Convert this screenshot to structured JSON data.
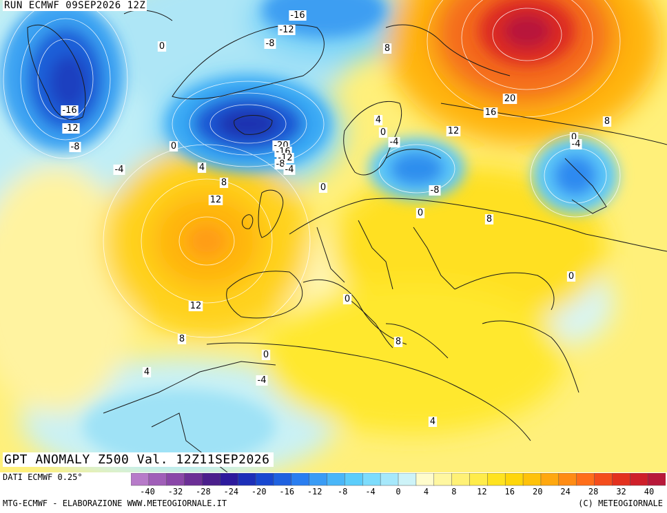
{
  "run_label": "RUN ECMWF 09SEP2026 12Z",
  "title": "GPT ANOMALY Z500 Val. 12Z11SEP2026",
  "data_source": "DATI ECMWF 0.25°",
  "credit_left": "MTG-ECMWF - ELABORAZIONE WWW.METEOGIORNALE.IT",
  "credit_right": "(C) METEOGIORNALE",
  "legend": {
    "ticks": [
      "-40",
      "-32",
      "-28",
      "-24",
      "-20",
      "-16",
      "-12",
      "-8",
      "-4",
      "0",
      "4",
      "8",
      "12",
      "16",
      "20",
      "24",
      "28",
      "32",
      "40"
    ],
    "colors": [
      "#b77bc9",
      "#a05fb8",
      "#8a47a8",
      "#6c2f96",
      "#4b1f8c",
      "#2c1a9c",
      "#1c2fb8",
      "#1848d0",
      "#1f62e0",
      "#2a7ef0",
      "#3a9cf5",
      "#4ab6f8",
      "#5ccdfb",
      "#7ddcfc",
      "#a6e8fb",
      "#cdf3f8",
      "#fffccc",
      "#fff7a0",
      "#fff176",
      "#ffec4a",
      "#ffe31f",
      "#ffd60a",
      "#ffc20a",
      "#ffa80f",
      "#ff8c14",
      "#ff6e1a",
      "#f44d1c",
      "#e3311e",
      "#cf1f2a",
      "#b8183a"
    ]
  },
  "contour_labels": [
    {
      "text": "-16"
    },
    {
      "text": "-12"
    },
    {
      "text": "-8"
    },
    {
      "text": "0"
    },
    {
      "text": "-16"
    },
    {
      "text": "-12"
    },
    {
      "text": "-8"
    },
    {
      "text": "0"
    },
    {
      "text": "-4"
    },
    {
      "text": "4"
    },
    {
      "text": "8"
    },
    {
      "text": "12"
    },
    {
      "text": "-20"
    },
    {
      "text": "-16"
    },
    {
      "text": "-12"
    },
    {
      "text": "-8"
    },
    {
      "text": "-4"
    },
    {
      "text": "0"
    },
    {
      "text": "8"
    },
    {
      "text": "20"
    },
    {
      "text": "16"
    },
    {
      "text": "12"
    },
    {
      "text": "8"
    },
    {
      "text": "4"
    },
    {
      "text": "0"
    },
    {
      "text": "-4"
    },
    {
      "text": "-8"
    },
    {
      "text": "0"
    },
    {
      "text": "8"
    },
    {
      "text": "0"
    },
    {
      "text": "-4"
    },
    {
      "text": "0"
    },
    {
      "text": "12"
    },
    {
      "text": "8"
    },
    {
      "text": "0"
    },
    {
      "text": "8"
    },
    {
      "text": "4"
    },
    {
      "text": "0"
    },
    {
      "text": "-4"
    },
    {
      "text": "4"
    }
  ]
}
